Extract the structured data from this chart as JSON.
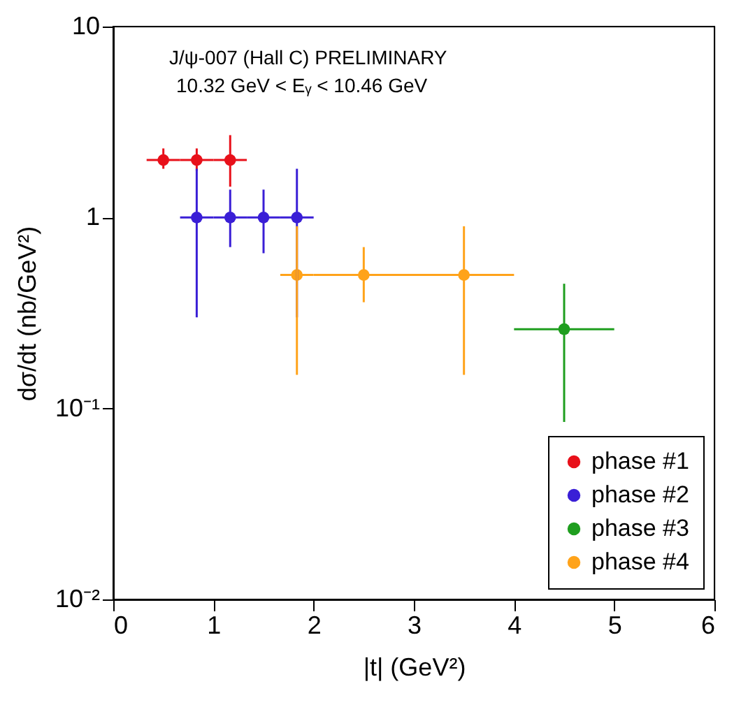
{
  "chart_data": {
    "type": "scatter",
    "xlabel": "|t| (GeV²)",
    "ylabel": "dσ/dt (nb/GeV²)",
    "annotations": [
      "J/ψ-007 (Hall C) PRELIMINARY",
      "10.32 GeV < Eᵧ < 10.46 GeV"
    ],
    "series": [
      {
        "name": "phase #1",
        "color": "#e8101a",
        "x": [
          0.5,
          0.833,
          1.167
        ],
        "values": [
          2,
          2,
          2
        ],
        "errors": [
          [
            1.8,
            2.3
          ],
          [
            1.75,
            2.3
          ],
          [
            1.45,
            2.7
          ]
        ],
        "xerrors": [
          [
            0.333,
            0.667
          ],
          [
            0.667,
            1.0
          ],
          [
            1.0,
            1.333
          ]
        ]
      },
      {
        "name": "phase #2",
        "color": "#3a1fd6",
        "x": [
          0.833,
          1.167,
          1.5,
          1.833
        ],
        "values": [
          1,
          1,
          1,
          1
        ],
        "errors": [
          [
            0.3,
            1.8
          ],
          [
            0.7,
            1.4
          ],
          [
            0.65,
            1.4
          ],
          [
            0.3,
            1.8
          ]
        ],
        "xerrors": [
          [
            0.667,
            1.0
          ],
          [
            1.0,
            1.333
          ],
          [
            1.333,
            1.667
          ],
          [
            1.667,
            2.0
          ]
        ]
      },
      {
        "name": "phase #3",
        "color": "#1f9e1f",
        "x": [
          4.5
        ],
        "values": [
          0.26
        ],
        "errors": [
          [
            0.085,
            0.45
          ]
        ],
        "xerrors": [
          [
            4.0,
            5.0
          ]
        ]
      },
      {
        "name": "phase #4",
        "color": "#ffa31a",
        "x": [
          1.833,
          2.5,
          3.5
        ],
        "values": [
          0.5,
          0.5,
          0.5
        ],
        "errors": [
          [
            0.15,
            0.9
          ],
          [
            0.36,
            0.7
          ],
          [
            0.15,
            0.9
          ]
        ],
        "xerrors": [
          [
            1.667,
            2.0
          ],
          [
            2.0,
            3.0
          ],
          [
            3.0,
            4.0
          ]
        ]
      }
    ],
    "xlim": [
      0,
      6
    ],
    "xticks": [
      0,
      1,
      2,
      3,
      4,
      5,
      6
    ],
    "ylim": [
      0.01,
      10
    ],
    "yticks": [
      {
        "value": 0.01,
        "label": "10⁻²"
      },
      {
        "value": 0.1,
        "label": "10⁻¹"
      },
      1,
      10
    ],
    "log": "y",
    "grid": false,
    "legend": "bottom right",
    "marker": "circle"
  }
}
